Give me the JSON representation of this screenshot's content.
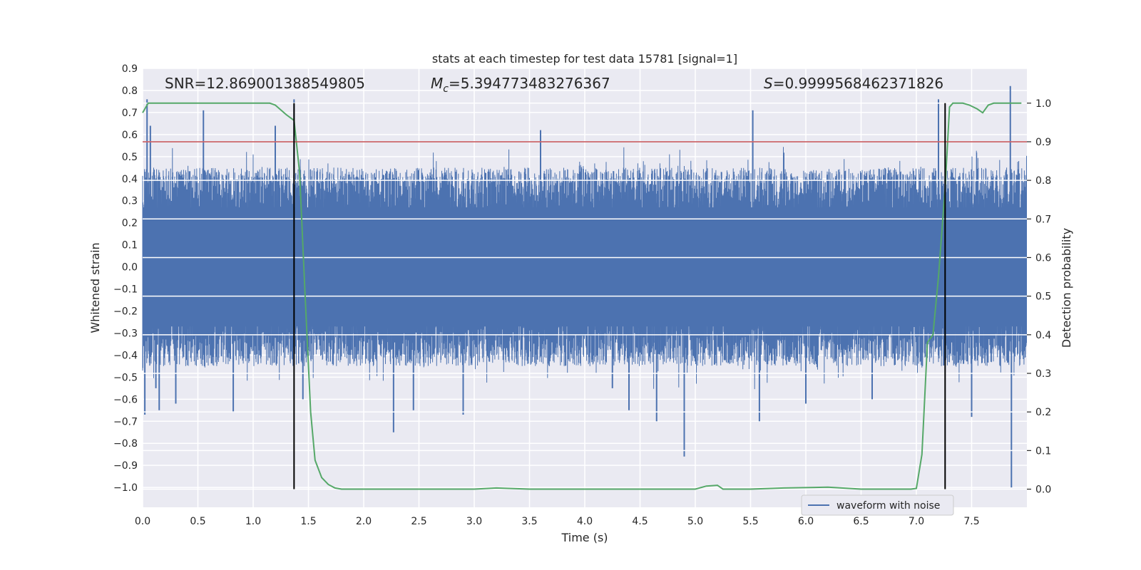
{
  "chart_data": {
    "type": "line",
    "title": "stats at each timestep for test data 15781 [signal=1]",
    "xlabel": "Time (s)",
    "ylabel_left": "Whitened strain",
    "ylabel_right": "Detection probability",
    "xlim": [
      0.0,
      8.0
    ],
    "ylim_left": [
      -1.09,
      0.9
    ],
    "ylim_right": [
      -0.047,
      1.09
    ],
    "x_ticks": [
      "0.0",
      "0.5",
      "1.0",
      "1.5",
      "2.0",
      "2.5",
      "3.0",
      "3.5",
      "4.0",
      "4.5",
      "5.0",
      "5.5",
      "6.0",
      "6.5",
      "7.0",
      "7.5"
    ],
    "y_left_ticks": [
      "0.9",
      "0.8",
      "0.7",
      "0.6",
      "0.5",
      "0.4",
      "0.3",
      "0.2",
      "0.1",
      "0.0",
      "−0.1",
      "−0.2",
      "−0.3",
      "−0.4",
      "−0.5",
      "−0.6",
      "−0.7",
      "−0.8",
      "−0.9",
      "−1.0"
    ],
    "y_right_ticks": [
      "1.0",
      "0.9",
      "0.8",
      "0.7",
      "0.6",
      "0.5",
      "0.4",
      "0.3",
      "0.2",
      "0.1",
      "0.0"
    ],
    "annotations": {
      "snr": "SNR=12.869001388549805",
      "mc_symbol": "M",
      "mc_sub": "c",
      "mc_value": "=5.394773483276367",
      "s_symbol": "S",
      "s_value": "=0.9999568462371826"
    },
    "legend": [
      "waveform with noise"
    ],
    "threshold_right": 0.9,
    "vlines_x": [
      1.37,
      7.26
    ],
    "waveform": {
      "name": "waveform with noise",
      "envelope_typical": 0.45,
      "spikes": [
        [
          0.02,
          -0.67
        ],
        [
          0.04,
          0.76
        ],
        [
          0.07,
          0.64
        ],
        [
          0.12,
          -0.55
        ],
        [
          0.15,
          -0.65
        ],
        [
          0.3,
          -0.62
        ],
        [
          0.55,
          0.71
        ],
        [
          0.56,
          -0.45
        ],
        [
          0.82,
          -0.66
        ],
        [
          1.2,
          0.64
        ],
        [
          1.37,
          0.76
        ],
        [
          1.45,
          -0.6
        ],
        [
          2.27,
          -0.75
        ],
        [
          2.45,
          -0.65
        ],
        [
          2.9,
          -0.67
        ],
        [
          3.6,
          0.62
        ],
        [
          4.25,
          -0.55
        ],
        [
          4.4,
          -0.65
        ],
        [
          4.65,
          -0.7
        ],
        [
          4.9,
          -0.86
        ],
        [
          5.52,
          0.71
        ],
        [
          5.58,
          -0.7
        ],
        [
          6.0,
          -0.62
        ],
        [
          6.6,
          -0.6
        ],
        [
          7.2,
          0.76
        ],
        [
          7.5,
          -0.68
        ],
        [
          7.85,
          0.82
        ],
        [
          7.86,
          -1.0
        ]
      ]
    },
    "series_right": {
      "name": "detection probability",
      "x": [
        0.0,
        0.05,
        0.1,
        0.3,
        0.6,
        0.9,
        1.15,
        1.2,
        1.3,
        1.37,
        1.42,
        1.47,
        1.52,
        1.56,
        1.62,
        1.68,
        1.74,
        1.8,
        2.0,
        2.5,
        3.0,
        3.2,
        3.5,
        4.0,
        4.5,
        5.0,
        5.1,
        5.2,
        5.25,
        5.5,
        5.8,
        6.2,
        6.5,
        6.8,
        6.95,
        7.0,
        7.05,
        7.1,
        7.15,
        7.2,
        7.26,
        7.3,
        7.33,
        7.36,
        7.42,
        7.48,
        7.55,
        7.6,
        7.65,
        7.7,
        7.8,
        7.95
      ],
      "y": [
        0.975,
        1.0,
        1.0,
        1.0,
        1.0,
        1.0,
        1.0,
        0.995,
        0.97,
        0.955,
        0.82,
        0.5,
        0.2,
        0.075,
        0.03,
        0.012,
        0.003,
        0.0,
        0.0,
        0.0,
        0.0,
        0.003,
        0.0,
        0.0,
        0.0,
        0.0,
        0.008,
        0.01,
        0.0,
        0.0,
        0.003,
        0.005,
        0.0,
        0.0,
        0.0,
        0.002,
        0.09,
        0.38,
        0.4,
        0.55,
        0.78,
        0.99,
        1.0,
        1.0,
        1.0,
        0.995,
        0.985,
        0.975,
        0.995,
        1.0,
        1.0,
        1.0
      ]
    },
    "colors": {
      "panel": "#eaeaf2",
      "grid": "#ffffff",
      "waveform": "#4c72b0",
      "probability": "#55a868",
      "threshold": "#c44e52",
      "vline": "#000000",
      "text": "#262626"
    }
  }
}
